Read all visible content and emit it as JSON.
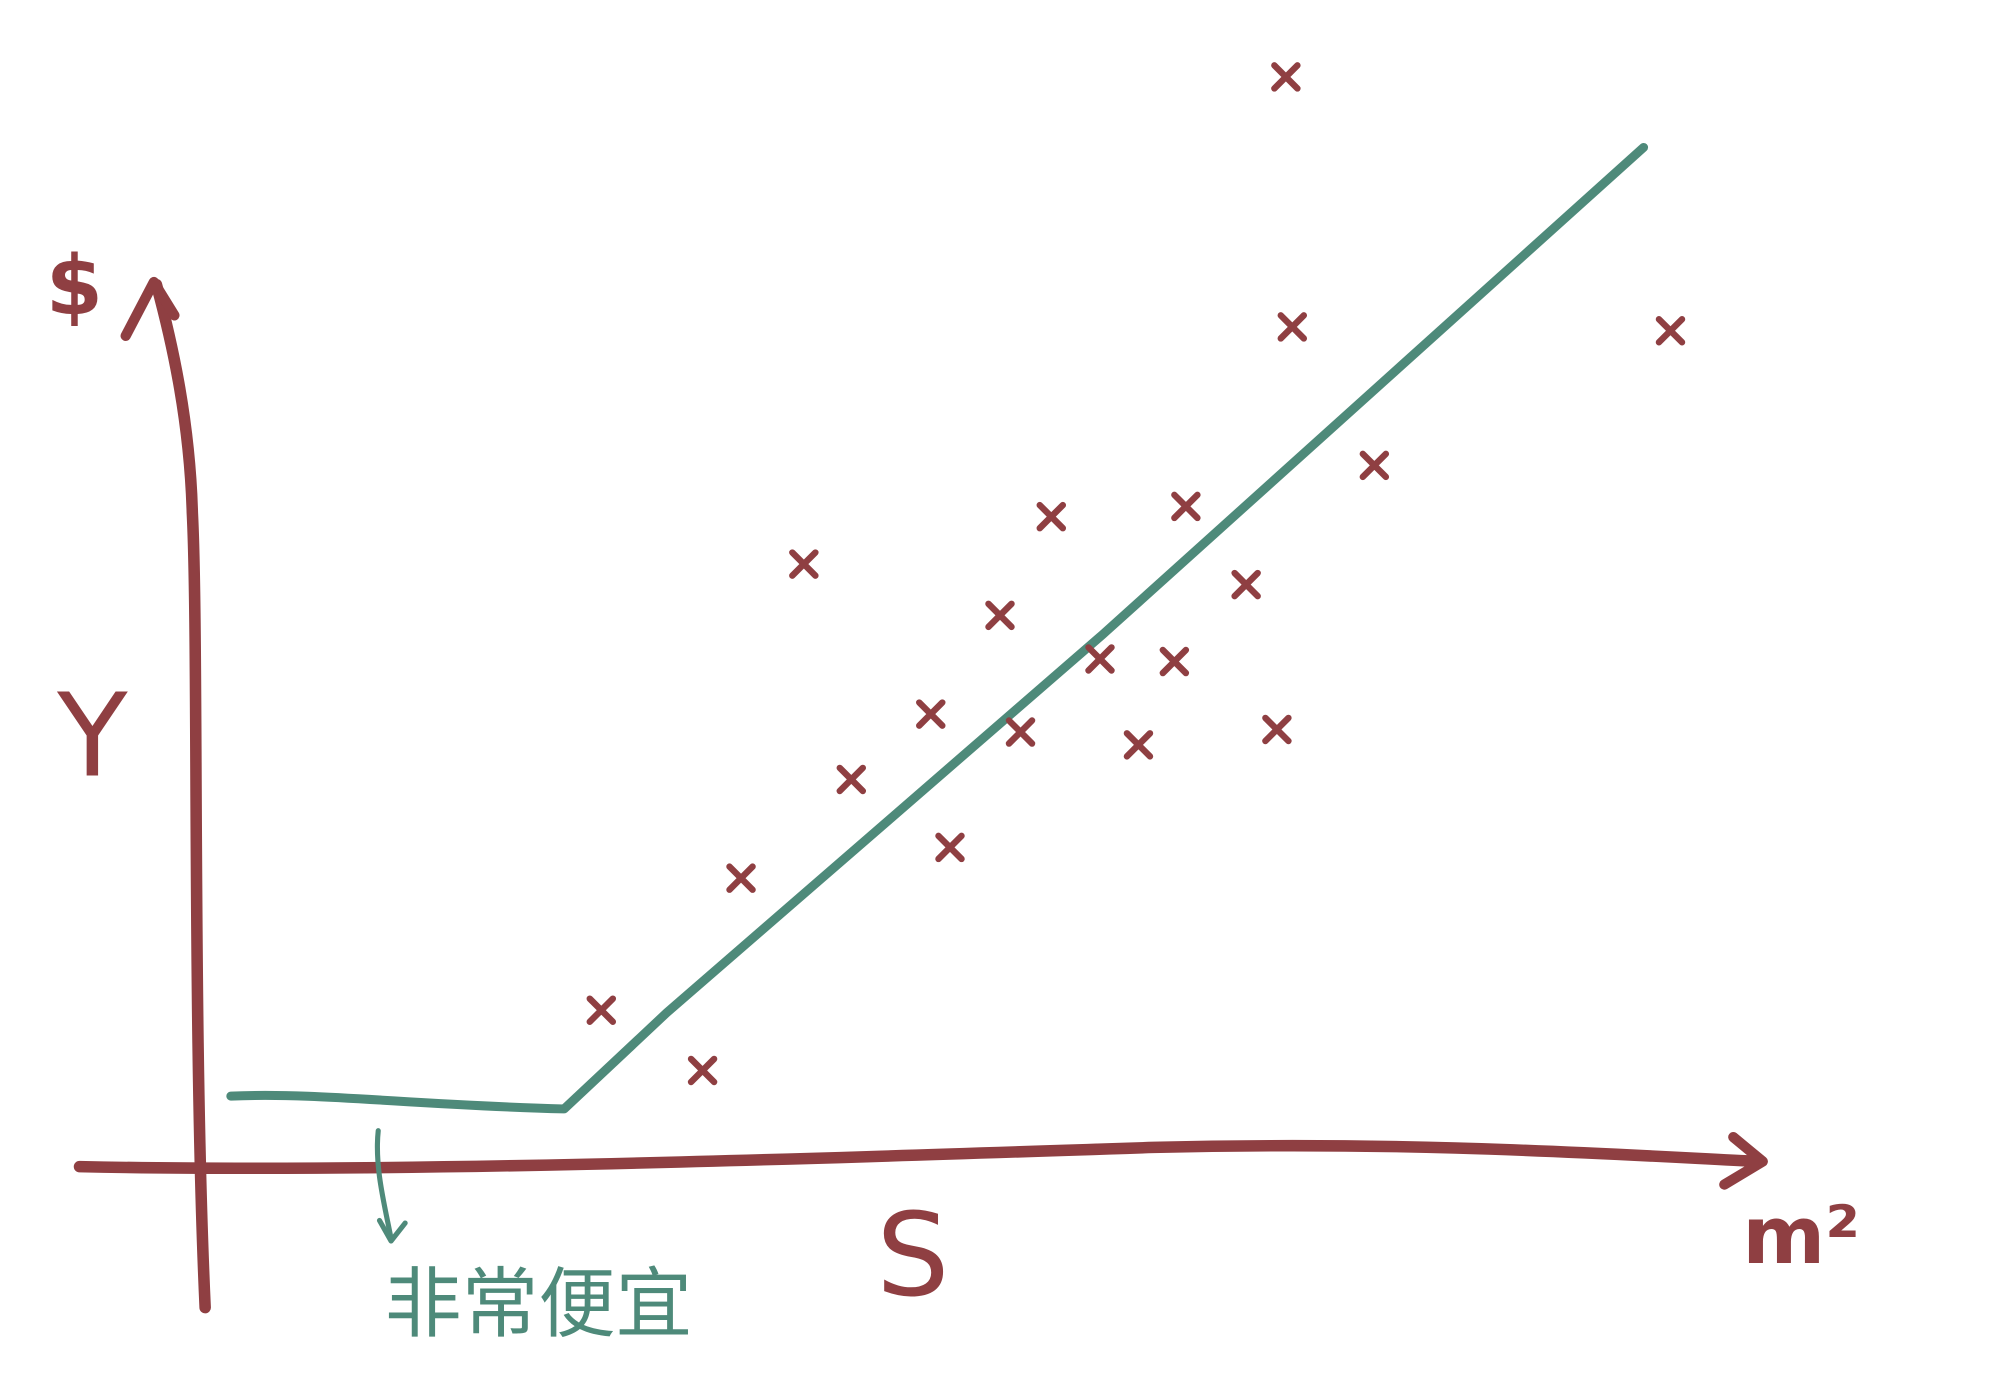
{
  "labels": {
    "y_axis_symbol": "$",
    "y_axis": "Y",
    "x_axis": "S",
    "x_unit": "m²"
  },
  "annotation": "非常便宜"
}
